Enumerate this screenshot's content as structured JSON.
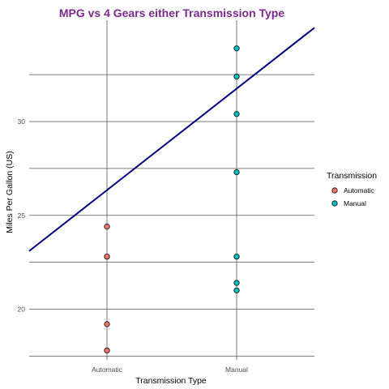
{
  "chart_data": {
    "type": "scatter",
    "title": "MPG vs 4 Gears either Transmission Type",
    "xlabel": "Transmission Type",
    "ylabel": "Miles Per Gallon (US)",
    "categories": [
      "Automatic",
      "Manual"
    ],
    "y_ticks": [
      20,
      25,
      30
    ],
    "ylim": [
      17.3,
      35.4
    ],
    "grid": true,
    "legend": {
      "title": "Transmission",
      "placement": "right",
      "entries": [
        "Automatic",
        "Manual"
      ]
    },
    "series": [
      {
        "name": "Automatic",
        "category": "Automatic",
        "values": [
          24.4,
          22.8,
          19.2,
          17.8
        ]
      },
      {
        "name": "Manual",
        "category": "Manual",
        "values": [
          33.9,
          32.4,
          30.4,
          27.3,
          22.8,
          21.4,
          21.0
        ]
      }
    ],
    "trend_line": {
      "category_start": 0.4,
      "y_start": 23.1,
      "category_end": 2.6,
      "y_end": 35.0
    },
    "colors": {
      "title": "#7b2a8b",
      "automatic": "#f8766d",
      "manual": "#00bfc4",
      "trend_line": "#000080",
      "grid": "#555555"
    }
  }
}
